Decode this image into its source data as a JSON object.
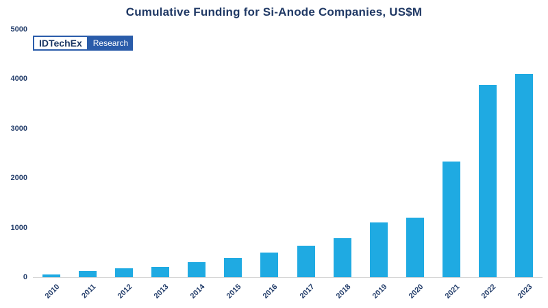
{
  "title": "Cumulative Funding for Si-Anode Companies, US$M",
  "logo": {
    "brand": "IDTechEx",
    "sub": "Research"
  },
  "colors": {
    "bar": "#1FAAE2",
    "title_text": "#1F3864",
    "axis_text": "#243E6B",
    "logo_blue": "#2A5CAA",
    "baseline": "#D6D6D6"
  },
  "chart_data": {
    "type": "bar",
    "title": "Cumulative Funding for Si-Anode Companies, US$M",
    "categories": [
      "2010",
      "2011",
      "2012",
      "2013",
      "2014",
      "2015",
      "2016",
      "2017",
      "2018",
      "2019",
      "2020",
      "2021",
      "2022",
      "2023"
    ],
    "values": [
      50,
      130,
      180,
      210,
      300,
      380,
      500,
      630,
      790,
      1100,
      1200,
      2330,
      3880,
      4100
    ],
    "xlabel": "",
    "ylabel": "",
    "ylim": [
      0,
      5000
    ],
    "yticks": [
      0,
      1000,
      2000,
      3000,
      4000,
      5000
    ],
    "grid": false,
    "legend": false
  }
}
